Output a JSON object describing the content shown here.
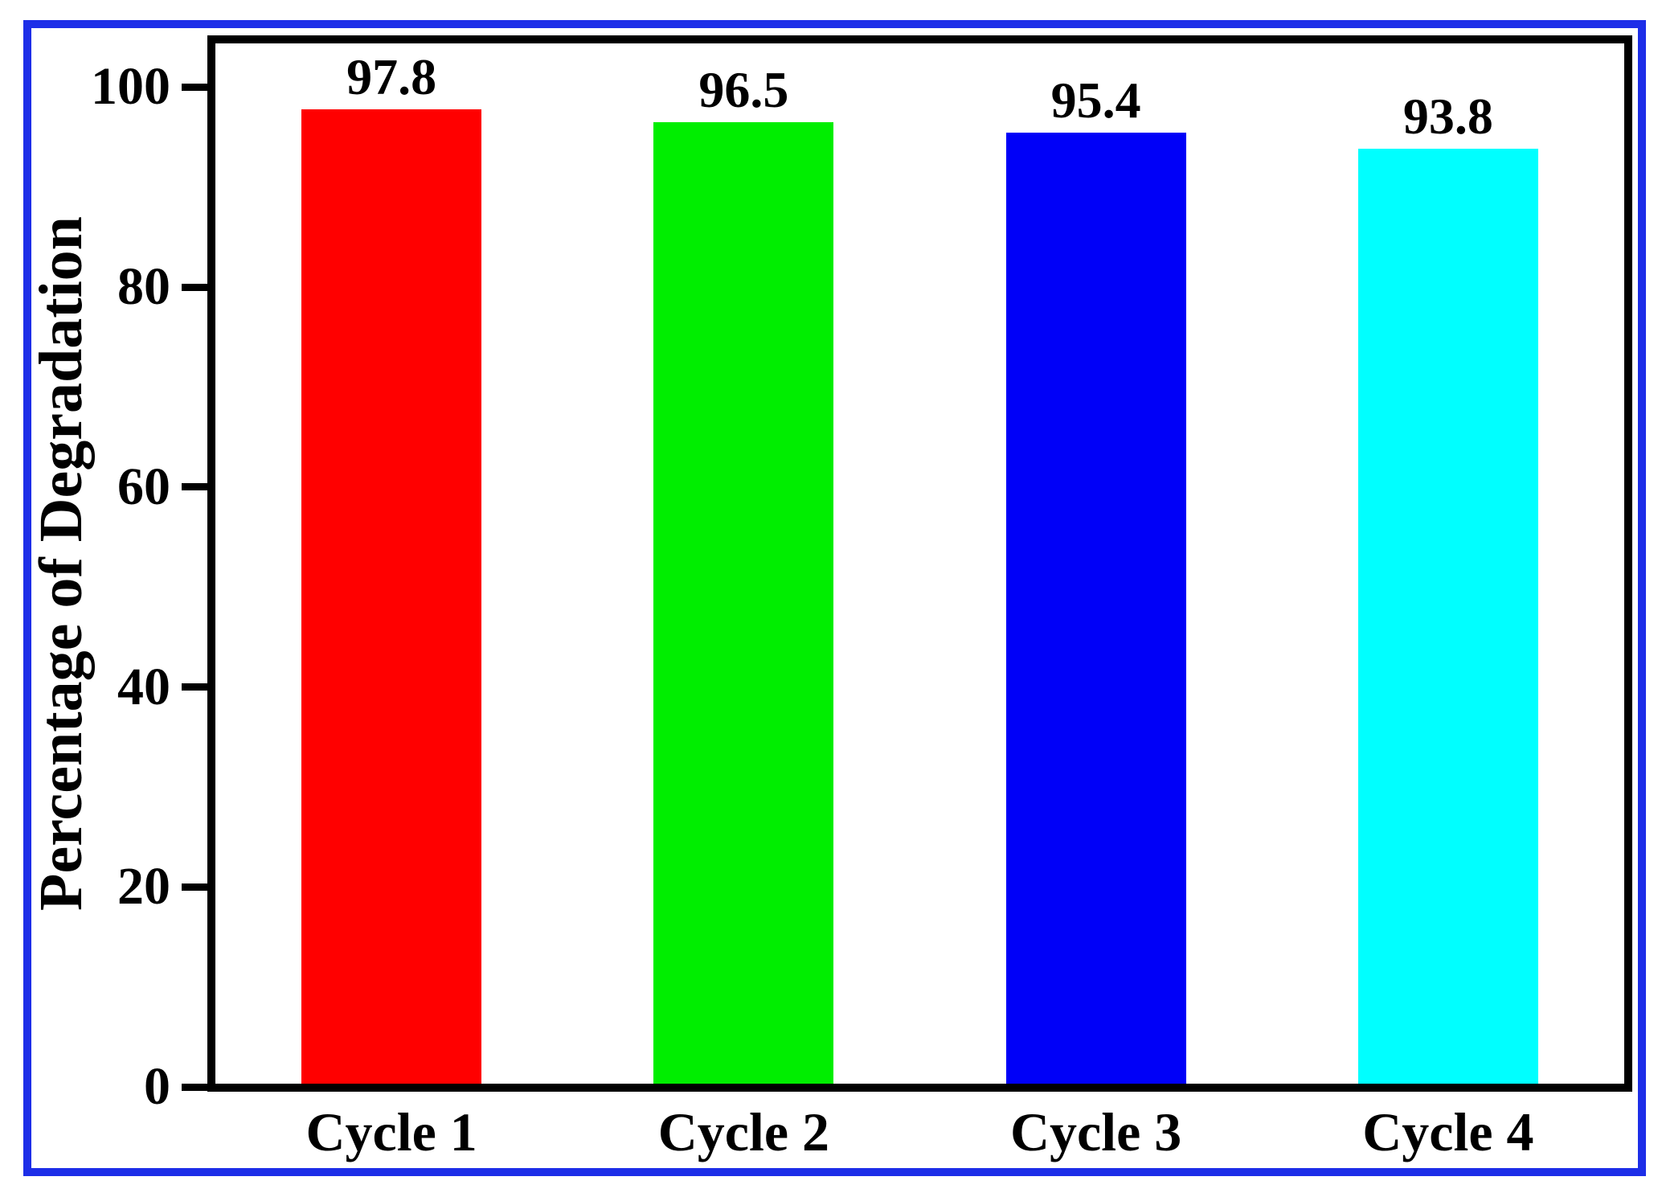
{
  "chart_data": {
    "type": "bar",
    "title": "",
    "xlabel": "",
    "ylabel": "Percentage of Degradation",
    "categories": [
      "Cycle 1",
      "Cycle 2",
      "Cycle 3",
      "Cycle 4"
    ],
    "values": [
      97.8,
      96.5,
      95.4,
      93.8
    ],
    "value_labels": [
      "97.8",
      "96.5",
      "95.4",
      "93.8"
    ],
    "bar_colors": [
      "#ff0000",
      "#00ee00",
      "#0000f8",
      "#00ffff"
    ],
    "yticks": [
      0,
      20,
      40,
      60,
      80,
      100
    ],
    "ytick_labels": [
      "0",
      "20",
      "40",
      "60",
      "80",
      "100"
    ],
    "ylim": [
      0,
      104.5
    ],
    "grid": false,
    "legend": null,
    "background_color": "#ffffff",
    "frame_color": "#000000",
    "figure_border_color": "#1d2ee8",
    "text_color": "#000000"
  }
}
